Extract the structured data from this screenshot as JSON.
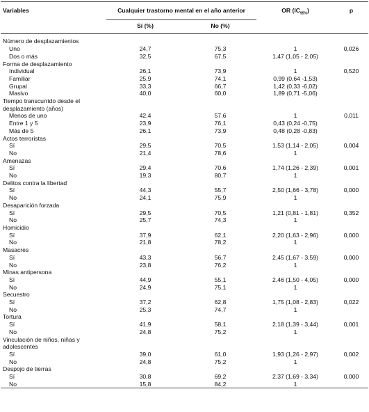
{
  "header": {
    "variables": "Variables",
    "group": "Cualquier trastorno mental en el año anterior",
    "or": "OR (IC",
    "or_sub": "95%",
    "or_close": ")",
    "p": "p",
    "si": "Sí (%)",
    "no": "No (%)"
  },
  "groups": [
    {
      "label": "Número de desplazamientos",
      "rows": [
        {
          "label": "Uno",
          "si": "24,7",
          "no": "75,3",
          "or": "1",
          "p": "0,026"
        },
        {
          "label": "Dos o más",
          "si": "32,5",
          "no": "67,5",
          "or": "1,47 (1,05 - 2,05)"
        }
      ]
    },
    {
      "label": "Forma de desplazamiento",
      "rows": [
        {
          "label": "Individual",
          "si": "26,1",
          "no": "73,9",
          "or": "1",
          "p": "0,520"
        },
        {
          "label": "Familiar",
          "si": "25,9",
          "no": "74,1",
          "or": "0,99 (0,64 -1,53)"
        },
        {
          "label": "Grupal",
          "si": "33,3",
          "no": "66,7",
          "or": "1,42 (0,33 -6,02)"
        },
        {
          "label": "Masivo",
          "si": "40,0",
          "no": "60,0",
          "or": "1,89 (0,71 -5,06)"
        }
      ]
    },
    {
      "label": "Tiempo transcurrido desde el desplazamiento (años)",
      "rows": [
        {
          "label": "Menos de uno",
          "si": "42,4",
          "no": "57,6",
          "or": "1",
          "p": "0,011"
        },
        {
          "label": "Entre 1 y 5",
          "si": "23,9",
          "no": "76,1",
          "or": "0,43 (0,24 -0,75)"
        },
        {
          "label": "Más de 5",
          "si": "26,1",
          "no": "73,9",
          "or": "0,48 (0,28 -0,83)"
        }
      ]
    },
    {
      "label": "Actos terroristas",
      "rows": [
        {
          "label": "Sí",
          "si": "29,5",
          "no": "70,5",
          "or": "1,53 (1,14 - 2,05)",
          "p": "0,004"
        },
        {
          "label": "No",
          "si": "21,4",
          "no": "78,6",
          "or": "1"
        }
      ]
    },
    {
      "label": "Amenazas",
      "rows": [
        {
          "label": "Sí",
          "si": "29,4",
          "no": "70,6",
          "or": "1,74 (1,26 - 2,39)",
          "p": "0,001"
        },
        {
          "label": "No",
          "si": "19,3",
          "no": "80,7",
          "or": "1"
        }
      ]
    },
    {
      "label": "Delitos contra la libertad",
      "rows": [
        {
          "label": "Sí",
          "si": "44,3",
          "no": "55,7",
          "or": "2,50 (1,66 - 3,78)",
          "p": "0,000"
        },
        {
          "label": "No",
          "si": "24,1",
          "no": "75,9",
          "or": "1"
        }
      ]
    },
    {
      "label": "Desaparición forzada",
      "rows": [
        {
          "label": "Sí",
          "si": "29,5",
          "no": "70,5",
          "or": "1,21 (0,81 - 1,81)",
          "p": "0,352"
        },
        {
          "label": "No",
          "si": "25,7",
          "no": "74,3",
          "or": "1"
        }
      ]
    },
    {
      "label": "Homicidio",
      "rows": [
        {
          "label": "Sí",
          "si": "37,9",
          "no": "62,1",
          "or": "2,20 (1,63 - 2,96)",
          "p": "0,000"
        },
        {
          "label": "No",
          "si": "21,8",
          "no": "78,2",
          "or": "1"
        }
      ]
    },
    {
      "label": "Masacres",
      "rows": [
        {
          "label": "Sí",
          "si": "43,3",
          "no": "56,7",
          "or": "2,45 (1,67 - 3,59)",
          "p": "0,000"
        },
        {
          "label": "No",
          "si": "23,8",
          "no": "76,2",
          "or": "1"
        }
      ]
    },
    {
      "label": "Minas antipersona",
      "rows": [
        {
          "label": "Sí",
          "si": "44,9",
          "no": "55,1",
          "or": "2,46 (1,50 - 4,05)",
          "p": "0,000"
        },
        {
          "label": "No",
          "si": "24,9",
          "no": "75,1",
          "or": "1"
        }
      ]
    },
    {
      "label": "Secuestro",
      "rows": [
        {
          "label": "Sí",
          "si": "37,2",
          "no": "62,8",
          "or": "1,75 (1,08 - 2,83)",
          "p": "0,022"
        },
        {
          "label": "No",
          "si": "25,3",
          "no": "74,7",
          "or": "1"
        }
      ]
    },
    {
      "label": "Tortura",
      "rows": [
        {
          "label": "Sí",
          "si": "41,9",
          "no": "58,1",
          "or": "2,18 (1,39 - 3,44)",
          "p": "0,001"
        },
        {
          "label": "No",
          "si": "24,8",
          "no": "75,2",
          "or": "1"
        }
      ]
    },
    {
      "label": "Vinculación de niños, niñas y adolescentes",
      "rows": [
        {
          "label": "Sí",
          "si": "39,0",
          "no": "61,0",
          "or": "1,93 (1,26 - 2,97)",
          "p": "0,002"
        },
        {
          "label": "No",
          "si": "24,8",
          "no": "75,2",
          "or": "1"
        }
      ]
    },
    {
      "label": "Despojo de tierras",
      "rows": [
        {
          "label": "Sí",
          "si": "30,8",
          "no": "69,2",
          "or": "2,37 (1,69 - 3,34)",
          "p": "0,000"
        },
        {
          "label": "No",
          "si": "15,8",
          "no": "84,2",
          "or": "1"
        }
      ]
    }
  ]
}
